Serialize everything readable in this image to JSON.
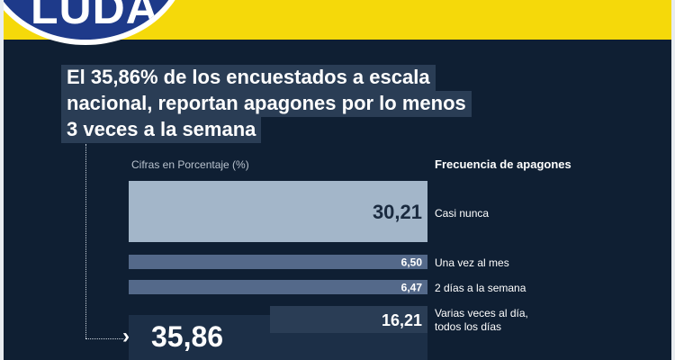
{
  "header": {
    "logo_text": "LUDA",
    "colors": {
      "band": "#f5d90a",
      "logo": "#1e3a8a",
      "background": "#0f1f33"
    }
  },
  "headline": {
    "lines": [
      "El 35,86% de los encuestados a escala",
      "nacional, reportan apagones por lo menos",
      "3 veces a la semana"
    ]
  },
  "chart_data": {
    "type": "bar",
    "title": "",
    "subtitle": "Cifras en Porcentaje (%)",
    "legend_title": "Frecuencia de apagones",
    "categories": [
      "Casi nunca",
      "Una vez al mes",
      "2 días a la semana",
      "Varias veces al día,\ntodos los días"
    ],
    "values": [
      30.21,
      6.5,
      6.47,
      16.21
    ],
    "value_labels": [
      "30,21",
      "6,50",
      "6,47",
      "16,21"
    ],
    "colors": [
      "#a3b6c9",
      "#54698a",
      "#54698a",
      "#223650"
    ],
    "total_label": "35,86",
    "grid": false
  }
}
